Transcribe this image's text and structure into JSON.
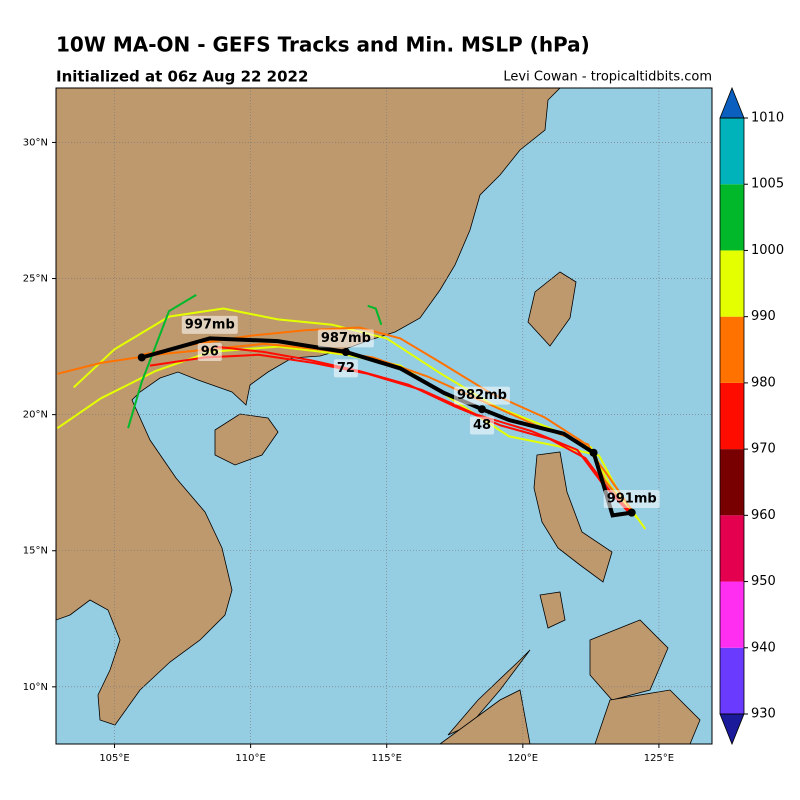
{
  "header": {
    "title": "10W MA-ON - GEFS Tracks and Min. MSLP (hPa)",
    "subtitle": "Initialized at 06z Aug 22 2022",
    "credit": "Levi Cowan - tropicaltidbits.com"
  },
  "map": {
    "xlim": [
      102.85,
      126.95
    ],
    "ylim": [
      7.9,
      32.0
    ],
    "xticks": [
      {
        "value": 105,
        "label": "105°E"
      },
      {
        "value": 110,
        "label": "110°E"
      },
      {
        "value": 115,
        "label": "115°E"
      },
      {
        "value": 120,
        "label": "120°E"
      },
      {
        "value": 125,
        "label": "125°E"
      }
    ],
    "yticks": [
      {
        "value": 10,
        "label": "10°N"
      },
      {
        "value": 15,
        "label": "15°N"
      },
      {
        "value": 20,
        "label": "20°N"
      },
      {
        "value": 25,
        "label": "25°N"
      },
      {
        "value": 30,
        "label": "30°N"
      }
    ],
    "grid": true,
    "ensemble_tracks": [
      {
        "color": "#e4ff00",
        "lon": [
          124.2,
          123.2,
          122.5,
          121,
          119,
          117,
          115,
          113,
          111,
          109,
          107,
          105,
          103.5
        ],
        "lat": [
          16.2,
          17.4,
          18.8,
          19.5,
          20.3,
          21.5,
          22.8,
          23.3,
          23.5,
          23.9,
          23.6,
          22.4,
          21
        ]
      },
      {
        "color": "#e4ff00",
        "lon": [
          124.5,
          123.5,
          122.8,
          121.5,
          119.5,
          117.5,
          115.5,
          113.5,
          111,
          108.5,
          106.5,
          104.5,
          102.9
        ],
        "lat": [
          15.8,
          17.2,
          18.5,
          18.8,
          19.2,
          20.5,
          21.8,
          22.2,
          22.5,
          22.3,
          21.6,
          20.6,
          19.5
        ]
      },
      {
        "color": "#ff7200",
        "lon": [
          123.8,
          123,
          122.4,
          120.5,
          118.5,
          116.5,
          114.5,
          112.5,
          110.5,
          108.5,
          106.5,
          104.5,
          102.9
        ],
        "lat": [
          16.6,
          17.6,
          18.9,
          19.6,
          20.5,
          21.4,
          22.1,
          22.4,
          22.6,
          22.4,
          22.2,
          21.9,
          21.5
        ]
      },
      {
        "color": "#ff7200",
        "lon": [
          124,
          123.1,
          122.2,
          120.8,
          118.8,
          117,
          115.5,
          114,
          112,
          110,
          108,
          106
        ],
        "lat": [
          16.5,
          17.8,
          19,
          19.9,
          20.8,
          21.9,
          22.8,
          23.2,
          23.1,
          22.9,
          22.6,
          22.2
        ]
      },
      {
        "color": "#ff0c00",
        "lon": [
          123.9,
          122.9,
          122,
          120.3,
          118.3,
          116.3,
          114.3,
          112.3,
          110.3,
          108.3,
          106.3
        ],
        "lat": [
          16.4,
          17.5,
          18.7,
          19.4,
          20,
          20.9,
          21.5,
          21.9,
          22.2,
          22.1,
          21.8
        ]
      },
      {
        "color": "#ff0c00",
        "lon": [
          124.1,
          123.2,
          122.3,
          121,
          119.2,
          117.5,
          115.8,
          114,
          112.2,
          110.5,
          108.7
        ],
        "lat": [
          16.3,
          17.2,
          18.4,
          19.1,
          19.6,
          20.3,
          21.1,
          21.6,
          22,
          22.3,
          22.5
        ]
      },
      {
        "color": "#00b82a",
        "lon": [
          108,
          107,
          106.5,
          106,
          105.5
        ],
        "lat": [
          24.4,
          23.8,
          22.5,
          21.2,
          19.5
        ]
      },
      {
        "color": "#00b82a",
        "lon": [
          114.8,
          114.6,
          114.3
        ],
        "lat": [
          23.3,
          23.9,
          24.0
        ]
      }
    ],
    "mean_track": {
      "lon": [
        124.0,
        123.3,
        123.0,
        122.6,
        121.5,
        119.5,
        118.5,
        117.1,
        115.5,
        113.5,
        111.0,
        108.5,
        106.0
      ],
      "lat": [
        16.4,
        16.3,
        17.3,
        18.6,
        19.3,
        19.8,
        20.2,
        20.8,
        21.7,
        22.3,
        22.7,
        22.8,
        22.1
      ]
    },
    "annotations": [
      {
        "label": "991mb",
        "lon": 124.0,
        "lat": 16.9
      },
      {
        "label": "982mb",
        "lon": 118.5,
        "lat": 20.7
      },
      {
        "label": "48",
        "lon": 118.5,
        "lat": 19.6
      },
      {
        "label": "987mb",
        "lon": 113.5,
        "lat": 22.8
      },
      {
        "label": "72",
        "lon": 113.5,
        "lat": 21.7
      },
      {
        "label": "997mb",
        "lon": 108.5,
        "lat": 23.3
      },
      {
        "label": "96",
        "lon": 108.5,
        "lat": 22.3
      }
    ]
  },
  "colorbar": {
    "ticks": [
      930,
      940,
      950,
      960,
      970,
      980,
      990,
      1000,
      1005,
      1010
    ],
    "colors": [
      "#6a3bff",
      "#ff2ef1",
      "#e4004f",
      "#780000",
      "#ff0c00",
      "#ff7200",
      "#e4ff00",
      "#00b82a",
      "#00b3bb"
    ],
    "under_color": "#1a1a9a",
    "over_color": "#0b5fbf"
  }
}
